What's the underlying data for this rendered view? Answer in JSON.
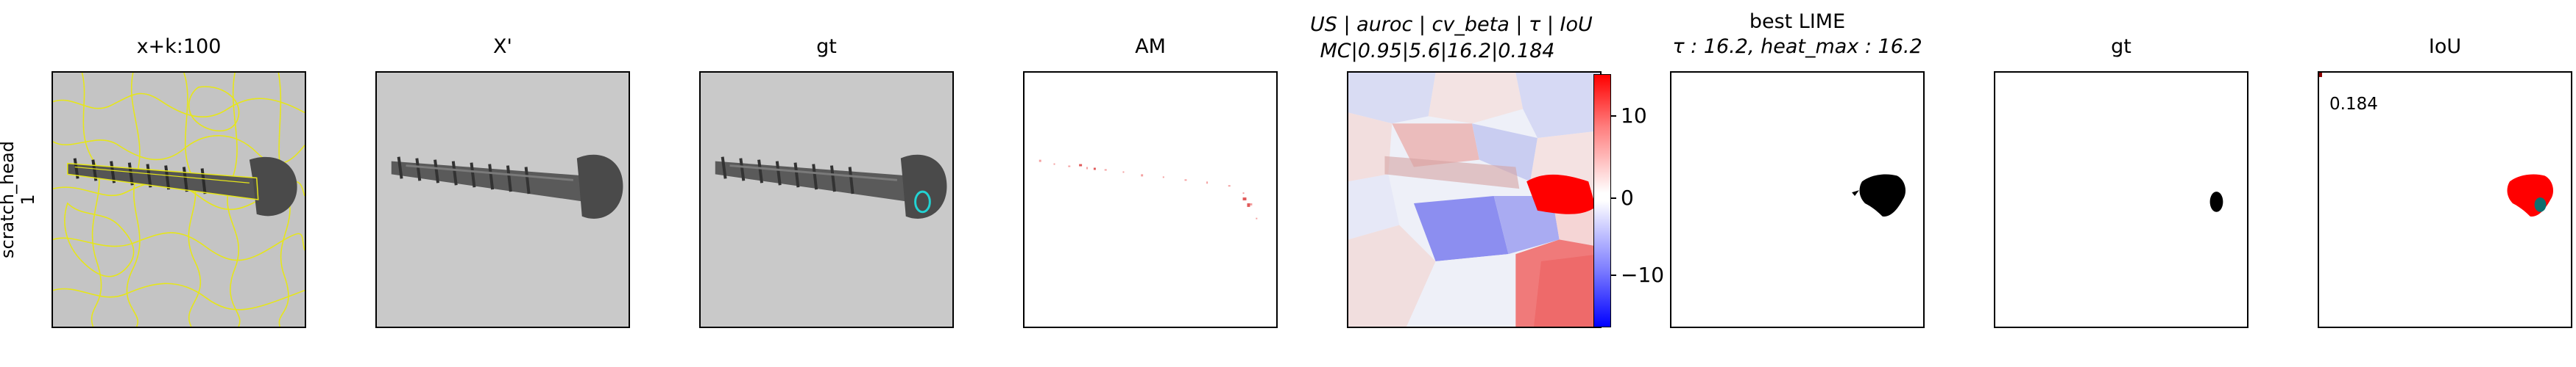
{
  "row_label": [
    "scratch_head",
    "1"
  ],
  "panels": [
    {
      "title_lines": [
        "x+k:100"
      ]
    },
    {
      "title_lines": [
        "X'"
      ]
    },
    {
      "title_lines": [
        "gt"
      ]
    },
    {
      "title_lines": [
        "AM"
      ]
    },
    {
      "title_lines": [
        "US | auroc | cv_beta | τ | IoU",
        "MC|0.95|5.6|16.2|0.184"
      ]
    },
    {
      "title_lines": [
        "best LIME",
        "τ : 16.2, heat_max : 16.2"
      ]
    },
    {
      "title_lines": [
        "gt"
      ]
    },
    {
      "title_lines": [
        "IoU"
      ]
    }
  ],
  "colorbar": {
    "ticks": [
      "10",
      "0",
      "−10"
    ],
    "colors": {
      "max": "#ff0000",
      "mid": "#ffffff",
      "min": "#0000ff"
    }
  },
  "iou_value": "0.184",
  "colors": {
    "overlay_contour": "#e6e619",
    "gt_contour": "#22d3d3",
    "heat_positive": "#ff0000",
    "heat_negative": "#3b3bff",
    "mask": "#000000",
    "iou_overlap": "#0e6e6e"
  }
}
